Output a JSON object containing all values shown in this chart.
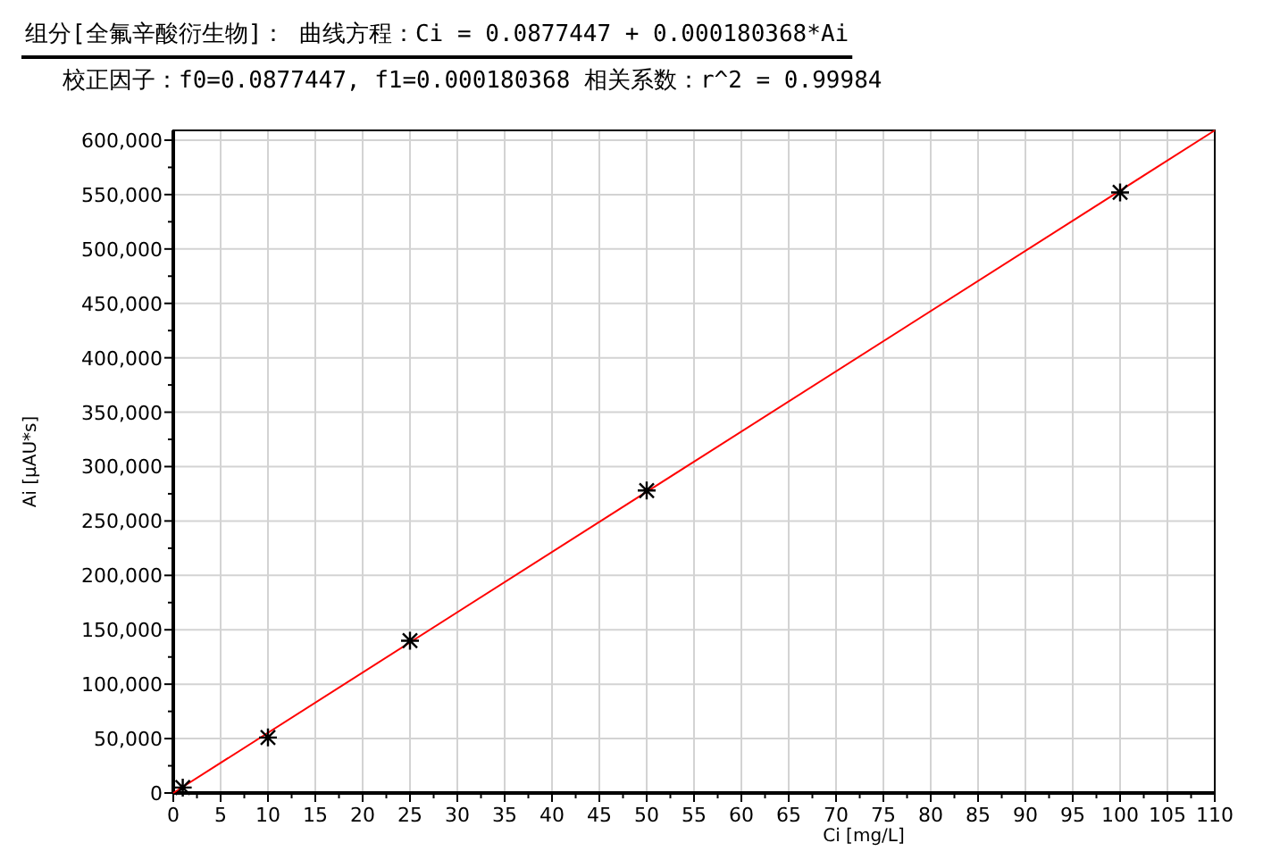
{
  "chart_data": {
    "type": "scatter",
    "title": "组分[全氟辛酸衍生物]：  曲线方程：Ci = 0.0877447 + 0.000180368*Ai",
    "subtitle": "校正因子：f0=0.0877447, f1=0.000180368  相关系数：r^2 = 0.99984",
    "xlabel": "Ci [mg/L]",
    "ylabel": "Ai [µAU*s]",
    "series": [
      {
        "type": "line",
        "color": "#ff0000",
        "x": [
          0,
          110
        ],
        "values": [
          0,
          609000
        ],
        "marker": "none"
      },
      {
        "type": "scatter",
        "color": "#000000",
        "x": [
          1,
          10,
          25,
          50,
          100
        ],
        "values": [
          5000,
          51000,
          140000,
          278000,
          552000
        ],
        "marker": "cross"
      }
    ],
    "xlim": [
      0,
      110
    ],
    "ylim": [
      0,
      609000
    ],
    "xticks": [
      0,
      {
        "value": 2.5,
        "label": null
      },
      5,
      {
        "value": 7.5,
        "label": null
      },
      10,
      {
        "value": 12.5,
        "label": null
      },
      15,
      {
        "value": 17.5,
        "label": null
      },
      20,
      {
        "value": 22.5,
        "label": null
      },
      25,
      {
        "value": 27.5,
        "label": null
      },
      30,
      {
        "value": 32.5,
        "label": null
      },
      35,
      {
        "value": 37.5,
        "label": null
      },
      40,
      {
        "value": 42.5,
        "label": null
      },
      45,
      {
        "value": 47.5,
        "label": null
      },
      50,
      {
        "value": 52.5,
        "label": null
      },
      55,
      {
        "value": 57.5,
        "label": null
      },
      60,
      {
        "value": 62.5,
        "label": null
      },
      65,
      {
        "value": 67.5,
        "label": null
      },
      70,
      {
        "value": 72.5,
        "label": null
      },
      75,
      {
        "value": 77.5,
        "label": null
      },
      80,
      {
        "value": 82.5,
        "label": null
      },
      85,
      {
        "value": 87.5,
        "label": null
      },
      90,
      {
        "value": 92.5,
        "label": null
      },
      95,
      {
        "value": 97.5,
        "label": null
      },
      100,
      {
        "value": 102.5,
        "label": null
      },
      105,
      {
        "value": 107.5,
        "label": null
      },
      110
    ],
    "yticks": [
      {
        "value": 0,
        "label": "0"
      },
      {
        "value": 25000,
        "label": null
      },
      {
        "value": 50000,
        "label": "50,000"
      },
      {
        "value": 75000,
        "label": null
      },
      {
        "value": 100000,
        "label": "100,000"
      },
      {
        "value": 125000,
        "label": null
      },
      {
        "value": 150000,
        "label": "150,000"
      },
      {
        "value": 175000,
        "label": null
      },
      {
        "value": 200000,
        "label": "200,000"
      },
      {
        "value": 225000,
        "label": null
      },
      {
        "value": 250000,
        "label": "250,000"
      },
      {
        "value": 275000,
        "label": null
      },
      {
        "value": 300000,
        "label": "300,000"
      },
      {
        "value": 325000,
        "label": null
      },
      {
        "value": 350000,
        "label": "350,000"
      },
      {
        "value": 375000,
        "label": null
      },
      {
        "value": 400000,
        "label": "400,000"
      },
      {
        "value": 425000,
        "label": null
      },
      {
        "value": 450000,
        "label": "450,000"
      },
      {
        "value": 475000,
        "label": null
      },
      {
        "value": 500000,
        "label": "500,000"
      },
      {
        "value": 525000,
        "label": null
      },
      {
        "value": 550000,
        "label": "550,000"
      },
      {
        "value": 575000,
        "label": null
      },
      {
        "value": 600000,
        "label": "600,000"
      }
    ],
    "grid": true
  }
}
